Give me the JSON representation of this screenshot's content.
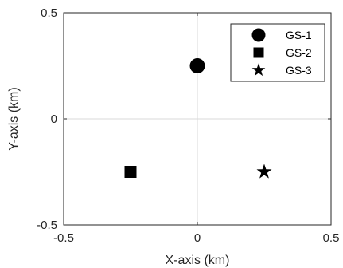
{
  "chart_data": {
    "type": "scatter",
    "title": "",
    "xlabel": "X-axis (km)",
    "ylabel": "Y-axis (km)",
    "xlim": [
      -0.5,
      0.5
    ],
    "ylim": [
      -0.5,
      0.5
    ],
    "grid": "zero-lines-only",
    "legend_position": "top-right",
    "xticks": [
      -0.5,
      0,
      0.5
    ],
    "xtick_labels": [
      "-0.5",
      "0",
      "0.5"
    ],
    "yticks": [
      -0.5,
      0,
      0.5
    ],
    "ytick_labels": [
      "-0.5",
      "0",
      "0.5"
    ],
    "series": [
      {
        "name": "GS-1",
        "marker": "circle",
        "color": "#000000",
        "x": [
          0
        ],
        "y": [
          0.25
        ]
      },
      {
        "name": "GS-2",
        "marker": "square",
        "color": "#000000",
        "x": [
          -0.25
        ],
        "y": [
          -0.25
        ]
      },
      {
        "name": "GS-3",
        "marker": "star",
        "color": "#000000",
        "x": [
          0.25
        ],
        "y": [
          -0.25
        ]
      }
    ],
    "colors": {
      "axes": "#262626",
      "zero_line": "#d9d9d9",
      "markers": "#000000"
    }
  }
}
